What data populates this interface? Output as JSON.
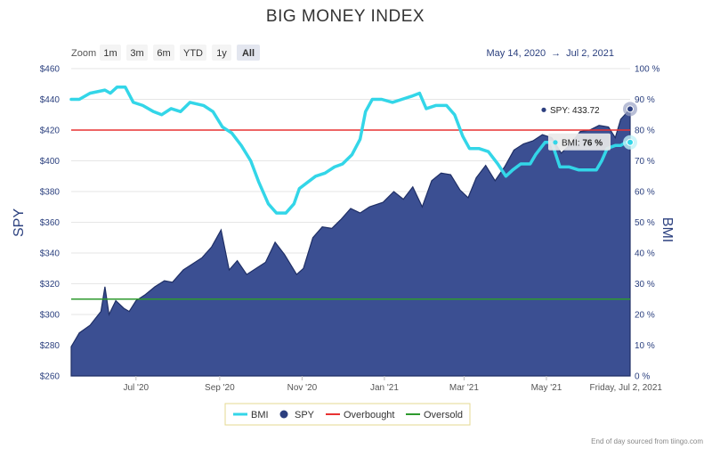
{
  "chart_data": {
    "type": "line",
    "title": "BIG MONEY INDEX",
    "zoom": {
      "label": "Zoom",
      "buttons": [
        "1m",
        "3m",
        "6m",
        "YTD",
        "1y",
        "All"
      ],
      "active": "All"
    },
    "date_range": {
      "from": "May 14, 2020",
      "arrow": "→",
      "to": "Jul 2, 2021"
    },
    "x_ticks": [
      {
        "label": "Jul '20",
        "d": "2020-07-01"
      },
      {
        "label": "Sep '20",
        "d": "2020-09-01"
      },
      {
        "label": "Nov '20",
        "d": "2020-11-01"
      },
      {
        "label": "Jan '21",
        "d": "2021-01-01"
      },
      {
        "label": "Mar '21",
        "d": "2021-03-01"
      },
      {
        "label": "May '21",
        "d": "2021-05-01"
      }
    ],
    "x_end_label": "Friday, Jul 2, 2021",
    "x_range": [
      "2020-05-14",
      "2021-07-02"
    ],
    "y_left": {
      "label": "SPY",
      "ticks": [
        "$260",
        "$280",
        "$300",
        "$320",
        "$340",
        "$360",
        "$380",
        "$400",
        "$420",
        "$440",
        "$460"
      ],
      "range": [
        260,
        460
      ]
    },
    "y_right": {
      "label": "BMI",
      "ticks": [
        "0 %",
        "10 %",
        "20 %",
        "30 %",
        "40 %",
        "50 %",
        "60 %",
        "70 %",
        "80 %",
        "90 %",
        "100 %"
      ],
      "range": [
        0,
        100
      ]
    },
    "overbought": 80,
    "oversold": 25,
    "series": [
      {
        "name": "BMI",
        "axis": "right",
        "color": "#33d6e8",
        "points": [
          [
            "2020-05-14",
            90
          ],
          [
            "2020-05-20",
            90
          ],
          [
            "2020-05-28",
            92
          ],
          [
            "2020-06-08",
            93
          ],
          [
            "2020-06-12",
            92
          ],
          [
            "2020-06-17",
            94
          ],
          [
            "2020-06-23",
            94
          ],
          [
            "2020-06-29",
            89
          ],
          [
            "2020-07-06",
            88
          ],
          [
            "2020-07-14",
            86
          ],
          [
            "2020-07-20",
            85
          ],
          [
            "2020-07-27",
            87
          ],
          [
            "2020-08-03",
            86
          ],
          [
            "2020-08-10",
            89
          ],
          [
            "2020-08-20",
            88
          ],
          [
            "2020-08-27",
            86
          ],
          [
            "2020-09-03",
            81
          ],
          [
            "2020-09-10",
            79
          ],
          [
            "2020-09-17",
            75
          ],
          [
            "2020-09-24",
            70
          ],
          [
            "2020-09-30",
            63
          ],
          [
            "2020-10-07",
            56
          ],
          [
            "2020-10-13",
            53
          ],
          [
            "2020-10-20",
            53
          ],
          [
            "2020-10-26",
            56
          ],
          [
            "2020-10-30",
            61
          ],
          [
            "2020-11-05",
            63
          ],
          [
            "2020-11-11",
            65
          ],
          [
            "2020-11-18",
            66
          ],
          [
            "2020-11-25",
            68
          ],
          [
            "2020-12-01",
            69
          ],
          [
            "2020-12-08",
            72
          ],
          [
            "2020-12-14",
            77
          ],
          [
            "2020-12-18",
            86
          ],
          [
            "2020-12-23",
            90
          ],
          [
            "2020-12-30",
            90
          ],
          [
            "2021-01-07",
            89
          ],
          [
            "2021-01-14",
            90
          ],
          [
            "2021-01-21",
            91
          ],
          [
            "2021-01-27",
            92
          ],
          [
            "2021-02-01",
            87
          ],
          [
            "2021-02-08",
            88
          ],
          [
            "2021-02-16",
            88
          ],
          [
            "2021-02-22",
            85
          ],
          [
            "2021-02-28",
            78
          ],
          [
            "2021-03-05",
            74
          ],
          [
            "2021-03-12",
            74
          ],
          [
            "2021-03-19",
            73
          ],
          [
            "2021-03-26",
            69
          ],
          [
            "2021-04-01",
            65
          ],
          [
            "2021-04-06",
            67
          ],
          [
            "2021-04-12",
            69
          ],
          [
            "2021-04-19",
            69
          ],
          [
            "2021-04-23",
            72
          ],
          [
            "2021-04-30",
            76
          ],
          [
            "2021-05-05",
            76
          ],
          [
            "2021-05-11",
            68
          ],
          [
            "2021-05-18",
            68
          ],
          [
            "2021-05-25",
            67
          ],
          [
            "2021-06-01",
            67
          ],
          [
            "2021-06-07",
            67
          ],
          [
            "2021-06-11",
            70
          ],
          [
            "2021-06-15",
            74
          ],
          [
            "2021-06-21",
            75
          ],
          [
            "2021-06-25",
            75
          ],
          [
            "2021-06-29",
            76
          ],
          [
            "2021-07-02",
            76
          ]
        ]
      },
      {
        "name": "SPY",
        "axis": "left",
        "color": "#2c3f7f",
        "points": [
          [
            "2020-05-14",
            279
          ],
          [
            "2020-05-20",
            288
          ],
          [
            "2020-05-28",
            293
          ],
          [
            "2020-06-05",
            302
          ],
          [
            "2020-06-08",
            318
          ],
          [
            "2020-06-11",
            300
          ],
          [
            "2020-06-16",
            309
          ],
          [
            "2020-06-22",
            304
          ],
          [
            "2020-06-26",
            302
          ],
          [
            "2020-07-01",
            309
          ],
          [
            "2020-07-08",
            313
          ],
          [
            "2020-07-15",
            318
          ],
          [
            "2020-07-22",
            322
          ],
          [
            "2020-07-28",
            321
          ],
          [
            "2020-08-05",
            329
          ],
          [
            "2020-08-12",
            333
          ],
          [
            "2020-08-19",
            337
          ],
          [
            "2020-08-26",
            344
          ],
          [
            "2020-09-02",
            355
          ],
          [
            "2020-09-08",
            329
          ],
          [
            "2020-09-14",
            335
          ],
          [
            "2020-09-21",
            326
          ],
          [
            "2020-09-28",
            330
          ],
          [
            "2020-10-05",
            334
          ],
          [
            "2020-10-12",
            347
          ],
          [
            "2020-10-19",
            339
          ],
          [
            "2020-10-28",
            326
          ],
          [
            "2020-11-02",
            330
          ],
          [
            "2020-11-09",
            350
          ],
          [
            "2020-11-16",
            357
          ],
          [
            "2020-11-23",
            356
          ],
          [
            "2020-11-30",
            362
          ],
          [
            "2020-12-07",
            369
          ],
          [
            "2020-12-14",
            366
          ],
          [
            "2020-12-21",
            370
          ],
          [
            "2020-12-31",
            373
          ],
          [
            "2021-01-08",
            380
          ],
          [
            "2021-01-15",
            375
          ],
          [
            "2021-01-22",
            383
          ],
          [
            "2021-01-29",
            370
          ],
          [
            "2021-02-05",
            387
          ],
          [
            "2021-02-12",
            392
          ],
          [
            "2021-02-19",
            391
          ],
          [
            "2021-02-26",
            381
          ],
          [
            "2021-03-04",
            376
          ],
          [
            "2021-03-10",
            389
          ],
          [
            "2021-03-17",
            397
          ],
          [
            "2021-03-24",
            387
          ],
          [
            "2021-03-31",
            396
          ],
          [
            "2021-04-07",
            407
          ],
          [
            "2021-04-14",
            411
          ],
          [
            "2021-04-21",
            413
          ],
          [
            "2021-04-28",
            417
          ],
          [
            "2021-05-05",
            415
          ],
          [
            "2021-05-12",
            405
          ],
          [
            "2021-05-19",
            411
          ],
          [
            "2021-05-26",
            419
          ],
          [
            "2021-06-02",
            420
          ],
          [
            "2021-06-09",
            423
          ],
          [
            "2021-06-16",
            422
          ],
          [
            "2021-06-21",
            415
          ],
          [
            "2021-06-25",
            427
          ],
          [
            "2021-07-02",
            433.72
          ]
        ]
      }
    ],
    "tooltips": [
      {
        "series": "SPY",
        "label": "SPY:",
        "value": "433.72"
      },
      {
        "series": "BMI",
        "label": "BMI:",
        "value": "76 %"
      }
    ],
    "legend": [
      {
        "label": "BMI",
        "color": "#33d6e8",
        "kind": "line"
      },
      {
        "label": "SPY",
        "color": "#2c3f7f",
        "kind": "dot"
      },
      {
        "label": "Overbought",
        "color": "#e83232",
        "kind": "line"
      },
      {
        "label": "Oversold",
        "color": "#2e9a2e",
        "kind": "line"
      }
    ],
    "credit": "End of day sourced from tiingo.com"
  }
}
